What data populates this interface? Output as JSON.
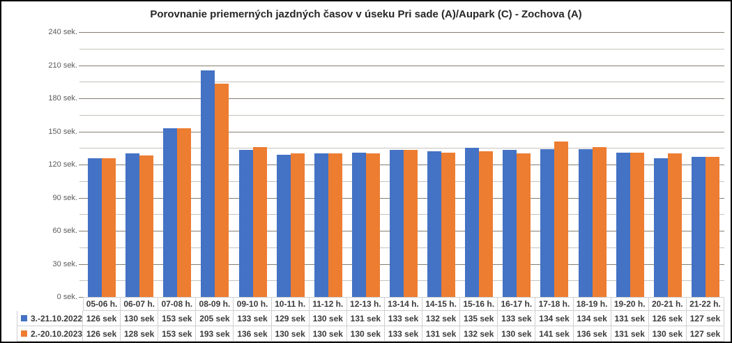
{
  "title": "Porovnanie priemerných jazdných časov v úseku Pri sade (A)/Aupark (C) - Zochova (A)",
  "chart_data": {
    "type": "bar",
    "categories": [
      "05-06 h.",
      "06-07 h.",
      "07-08 h.",
      "08-09 h.",
      "09-10 h.",
      "10-11 h.",
      "11-12 h.",
      "12-13 h.",
      "13-14 h.",
      "14-15 h.",
      "15-16 h.",
      "16-17 h.",
      "17-18 h.",
      "18-19 h.",
      "19-20 h.",
      "20-21 h.",
      "21-22 h."
    ],
    "series": [
      {
        "name": "3.-21.10.2022",
        "color": "#4472C4",
        "values": [
          126,
          130,
          153,
          205,
          133,
          129,
          130,
          131,
          133,
          132,
          135,
          133,
          134,
          134,
          131,
          126,
          127
        ]
      },
      {
        "name": "2.-20.10.2023",
        "color": "#ED7D31",
        "values": [
          126,
          128,
          153,
          193,
          136,
          130,
          130,
          130,
          133,
          131,
          132,
          130,
          141,
          136,
          131,
          130,
          127
        ]
      }
    ],
    "value_unit": "sek",
    "y_axis": {
      "unit": "sek.",
      "min": 0,
      "max": 240,
      "major_interval": 30,
      "minor_interval": 15,
      "tick_labels": [
        "0 sek.",
        "30 sek.",
        "60 sek.",
        "90 sek.",
        "120 sek.",
        "150 sek.",
        "180 sek.",
        "210 sek.",
        "240 sek."
      ]
    },
    "grid": "horizontal major and minor gridlines",
    "legend_position": "data-table left column"
  },
  "colors": {
    "series_2022": "#4472C4",
    "series_2023": "#ED7D31",
    "major_gridline": "#857d70",
    "minor_gridline": "#c6c2bb",
    "axis_text": "#595959",
    "table_text": "#3a3a3a",
    "table_border": "#cfcfcf",
    "title_text": "#262626",
    "frame_border": "#000000"
  }
}
